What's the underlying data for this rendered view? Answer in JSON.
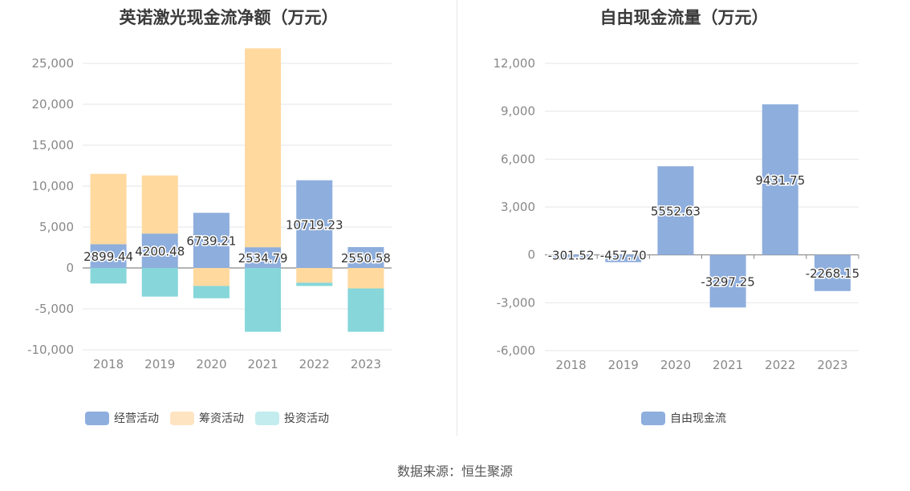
{
  "source_text": "数据来源：恒生聚源",
  "chart_data": [
    {
      "id": "left",
      "type": "bar",
      "title": "英诺激光现金流净额（万元）",
      "categories": [
        "2018",
        "2019",
        "2020",
        "2021",
        "2022",
        "2023"
      ],
      "series": [
        {
          "name": "经营活动",
          "color": "#8eaedd",
          "values": [
            2899.44,
            4200.48,
            6739.21,
            2534.79,
            10719.23,
            2550.58
          ],
          "show_labels": true
        },
        {
          "name": "筹资活动",
          "color": "#ffd99e",
          "values": [
            8600,
            7100,
            -2200,
            24300,
            -1800,
            -2500
          ]
        },
        {
          "name": "投资活动",
          "color": "#86d6da",
          "values": [
            -1900,
            -3500,
            -1500,
            -7800,
            -400,
            -5300
          ]
        }
      ],
      "data_labels": [
        "2899.44",
        "4200.48",
        "6739.21",
        "2534.79",
        "10719.23",
        "2550.58"
      ],
      "ylim": [
        -10000,
        25000
      ],
      "yticks": [
        25000,
        20000,
        15000,
        10000,
        5000,
        0,
        -5000,
        -10000
      ],
      "ytick_labels": [
        "25,000",
        "20,000",
        "15,000",
        "10,000",
        "5,000",
        "0",
        "-5,000",
        "-10,000"
      ],
      "legend": [
        {
          "label": "经营活动",
          "color": "#8eaedd"
        },
        {
          "label": "筹资活动",
          "color": "#ffe4c2"
        },
        {
          "label": "投资活动",
          "color": "#c2ecee"
        }
      ],
      "grid": true,
      "legend_position": "bottom"
    },
    {
      "id": "right",
      "type": "bar",
      "title": "自由现金流量（万元）",
      "categories": [
        "2018",
        "2019",
        "2020",
        "2021",
        "2022",
        "2023"
      ],
      "series": [
        {
          "name": "自由现金流",
          "color": "#8eaedd",
          "values": [
            -301.52,
            -457.7,
            5552.63,
            -3297.25,
            9431.75,
            -2268.15
          ]
        }
      ],
      "data_labels": [
        "-301.52",
        "-457.70",
        "5552.63",
        "-3297.25",
        "9431.75",
        "-2268.15"
      ],
      "ylim": [
        -6000,
        12000
      ],
      "yticks": [
        12000,
        9000,
        6000,
        3000,
        0,
        -3000,
        -6000
      ],
      "ytick_labels": [
        "12,000",
        "9,000",
        "6,000",
        "3,000",
        "0",
        "-3,000",
        "-6,000"
      ],
      "legend": [
        {
          "label": "自由现金流",
          "color": "#8eaedd"
        }
      ],
      "grid": true,
      "legend_position": "bottom"
    }
  ]
}
